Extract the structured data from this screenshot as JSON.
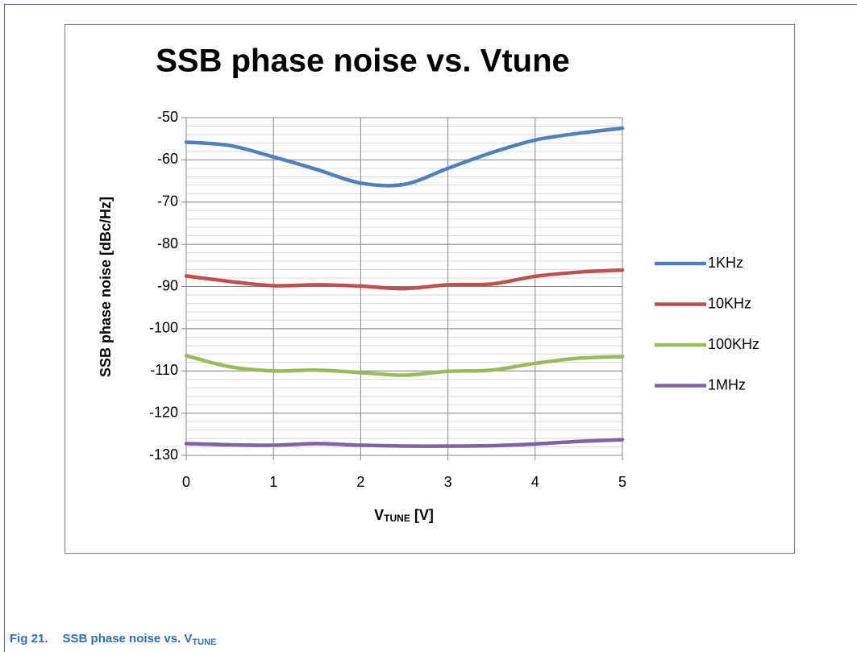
{
  "chart_data": {
    "type": "line",
    "title": "SSB phase noise vs. Vtune",
    "ylabel": "SSB phase noise [dBc/Hz]",
    "xlabel": {
      "main": "V",
      "sub": "TUNE",
      "rest": " [V]"
    },
    "x": [
      0,
      0.5,
      1,
      1.5,
      2,
      2.5,
      3,
      3.5,
      4,
      4.5,
      5
    ],
    "series": [
      {
        "name": "1KHz",
        "color": "#4f81bd",
        "values": [
          -55.8,
          -56.6,
          -59.3,
          -62.3,
          -65.5,
          -65.8,
          -62,
          -58.3,
          -55.3,
          -53.7,
          -52.5
        ]
      },
      {
        "name": "10KHz",
        "color": "#c0504d",
        "values": [
          -87.5,
          -88.8,
          -89.8,
          -89.6,
          -89.9,
          -90.5,
          -89.6,
          -89.4,
          -87.6,
          -86.6,
          -86.1
        ]
      },
      {
        "name": "100KHz",
        "color": "#9bbb59",
        "values": [
          -106.4,
          -109,
          -110,
          -109.8,
          -110.4,
          -111,
          -110.1,
          -109.8,
          -108.2,
          -107,
          -106.6
        ]
      },
      {
        "name": "1MHz",
        "color": "#8064a2",
        "values": [
          -127.2,
          -127.5,
          -127.6,
          -127.2,
          -127.6,
          -127.8,
          -127.8,
          -127.7,
          -127.3,
          -126.7,
          -126.3
        ]
      }
    ],
    "xlim": [
      0,
      5
    ],
    "xticks": [
      0,
      1,
      2,
      3,
      4,
      5
    ],
    "ylim": [
      -130,
      -50
    ],
    "yticks": [
      -130,
      -120,
      -110,
      -100,
      -90,
      -80,
      -70,
      -60,
      -50
    ],
    "grid": true,
    "minor_grid_step": 2,
    "legend": "right"
  },
  "caption": {
    "label": "Fig 21.",
    "text": "SSB phase noise vs. V",
    "sub": "TUNE"
  }
}
